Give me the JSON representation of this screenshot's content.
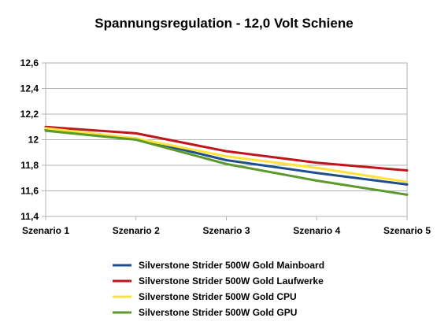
{
  "chart_data": {
    "type": "line",
    "title": "Spannungsregulation - 12,0 Volt Schiene",
    "xlabel": "",
    "ylabel": "",
    "categories": [
      "Szenario 1",
      "Szenario 2",
      "Szenario 3",
      "Szenario 4",
      "Szenario 5"
    ],
    "ylim": [
      11.4,
      12.6
    ],
    "yticks": [
      11.4,
      11.6,
      11.8,
      12.0,
      12.2,
      12.4,
      12.6
    ],
    "ytick_labels": [
      "11,4",
      "11,6",
      "11,8",
      "12",
      "12,2",
      "12,4",
      "12,6"
    ],
    "grid": true,
    "legend_position": "bottom",
    "series": [
      {
        "name": "Silverstone Strider 500W Gold Mainboard",
        "color": "#1f4e8c",
        "values": [
          12.08,
          12.01,
          11.84,
          11.74,
          11.65
        ]
      },
      {
        "name": "Silverstone Strider 500W Gold Laufwerke",
        "color": "#c0161b",
        "values": [
          12.1,
          12.05,
          11.91,
          11.82,
          11.76
        ]
      },
      {
        "name": "Silverstone Strider 500W Gold CPU",
        "color": "#ffe23a",
        "values": [
          12.09,
          12.01,
          11.87,
          11.78,
          11.67
        ]
      },
      {
        "name": "Silverstone Strider 500W Gold GPU",
        "color": "#5c9a2c",
        "values": [
          12.07,
          12.0,
          11.81,
          11.68,
          11.57
        ]
      }
    ]
  }
}
